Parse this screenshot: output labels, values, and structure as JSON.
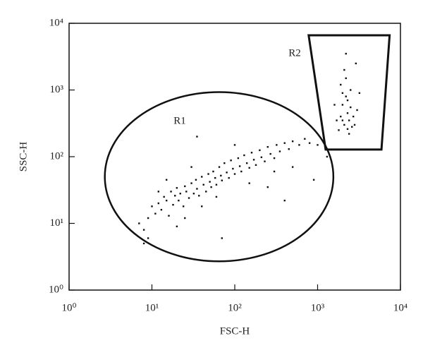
{
  "chart_data": {
    "type": "scatter",
    "xlabel": "FSC-H",
    "ylabel": "SSC-H",
    "log_x": true,
    "log_y": true,
    "color": "#111111",
    "xlim": [
      1,
      10000
    ],
    "ylim": [
      1,
      10000
    ],
    "xticks": [
      {
        "value": 1,
        "label": "10⁰"
      },
      {
        "value": 10,
        "label": "10¹"
      },
      {
        "value": 100,
        "label": "10²"
      },
      {
        "value": 1000,
        "label": "10³"
      },
      {
        "value": 10000,
        "label": "10⁴"
      }
    ],
    "yticks": [
      {
        "value": 1,
        "label": "10⁰"
      },
      {
        "value": 10,
        "label": "10¹"
      },
      {
        "value": 100,
        "label": "10²"
      },
      {
        "value": 1000,
        "label": "10³"
      },
      {
        "value": 10000,
        "label": "10⁴"
      }
    ],
    "x": [
      8,
      9,
      10,
      11,
      12,
      13,
      14,
      15,
      16,
      17,
      18,
      19,
      20,
      21,
      22,
      24,
      25,
      26,
      28,
      30,
      32,
      34,
      35,
      37,
      40,
      42,
      45,
      48,
      50,
      52,
      55,
      58,
      60,
      65,
      68,
      70,
      75,
      80,
      85,
      90,
      95,
      100,
      110,
      115,
      120,
      130,
      140,
      150,
      160,
      170,
      180,
      200,
      210,
      230,
      250,
      270,
      300,
      320,
      350,
      400,
      450,
      500,
      600,
      700,
      800,
      12,
      9,
      7,
      25,
      40,
      60,
      15,
      30,
      150,
      300,
      100,
      500,
      1000,
      900,
      20,
      8,
      400,
      250,
      70,
      1300,
      35,
      1800,
      1900,
      2000,
      2100,
      2200,
      2300,
      2400,
      2500,
      2200,
      2100,
      2600,
      2000,
      1900,
      2300,
      2700,
      2800,
      2400,
      1700,
      3000,
      2200,
      2900,
      3200,
      2500,
      1600,
      2300,
      2000
    ],
    "values": [
      8,
      12,
      18,
      14,
      20,
      16,
      25,
      22,
      13,
      30,
      19,
      26,
      34,
      22,
      28,
      18,
      36,
      30,
      24,
      40,
      28,
      45,
      33,
      26,
      50,
      38,
      30,
      55,
      42,
      35,
      60,
      48,
      38,
      70,
      52,
      44,
      80,
      58,
      48,
      88,
      66,
      55,
      95,
      72,
      60,
      105,
      80,
      68,
      115,
      90,
      75,
      125,
      98,
      85,
      140,
      110,
      95,
      150,
      120,
      160,
      130,
      170,
      150,
      185,
      160,
      30,
      6,
      10,
      12,
      18,
      25,
      45,
      70,
      40,
      60,
      150,
      70,
      150,
      45,
      9,
      5,
      22,
      35,
      6,
      100,
      200,
      250,
      400,
      600,
      300,
      800,
      450,
      350,
      550,
      1500,
      2000,
      280,
      900,
      1200,
      700,
      400,
      300,
      220,
      350,
      500,
      3500,
      2500,
      900,
      1000,
      600,
      260,
      350
    ],
    "gates": [
      {
        "label": "R1",
        "shape": "ellipse",
        "x_range": [
          2.7,
          1550
        ],
        "y_range": [
          2.7,
          930
        ]
      },
      {
        "label": "R2",
        "shape": "polygon",
        "x": [
          780,
          7400,
          5900,
          1250
        ],
        "y": [
          6600,
          6600,
          128,
          128
        ]
      }
    ]
  }
}
